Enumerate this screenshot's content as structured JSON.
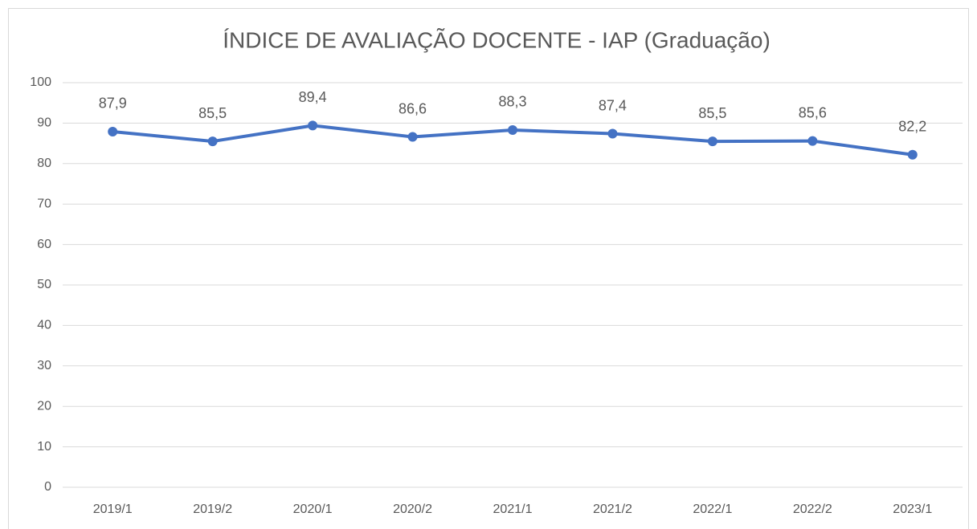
{
  "chart_data": {
    "type": "line",
    "title": "ÍNDICE DE AVALIAÇÃO DOCENTE - IAP (Graduação)",
    "categories": [
      "2019/1",
      "2019/2",
      "2020/1",
      "2020/2",
      "2021/1",
      "2021/2",
      "2022/1",
      "2022/2",
      "2023/1"
    ],
    "series": [
      {
        "name": "IAP",
        "color": "#4472c4",
        "values": [
          87.9,
          85.5,
          89.4,
          86.6,
          88.3,
          87.4,
          85.5,
          85.6,
          82.2
        ],
        "value_labels": [
          "87,9",
          "85,5",
          "89,4",
          "86,6",
          "88,3",
          "87,4",
          "85,5",
          "85,6",
          "82,2"
        ]
      }
    ],
    "ylim": [
      0,
      100
    ],
    "yticks": [
      0,
      10,
      20,
      30,
      40,
      50,
      60,
      70,
      80,
      90,
      100
    ],
    "grid": true
  }
}
